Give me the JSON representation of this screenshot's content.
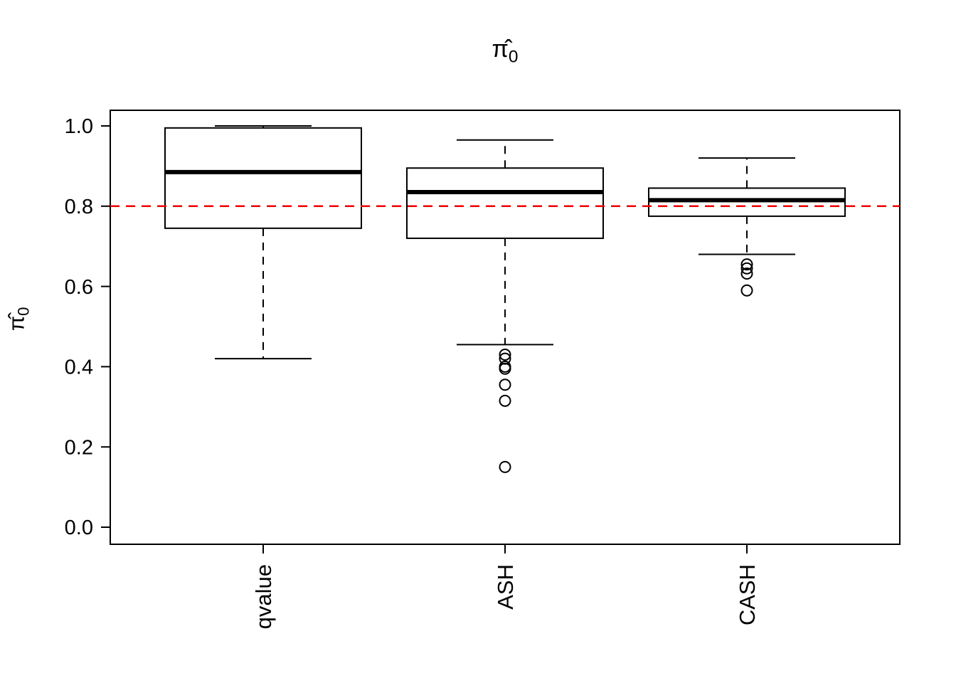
{
  "chart_data": {
    "type": "boxplot",
    "title": "π̂0",
    "title_base": "π̂",
    "title_sub": "0",
    "ylabel": "π̂0",
    "ylabel_base": "π̂",
    "ylabel_sub": "0",
    "categories": [
      "qvalue",
      "ASH",
      "CASH"
    ],
    "yticks": [
      0.0,
      0.2,
      0.4,
      0.6,
      0.8,
      1.0
    ],
    "ylim": [
      -0.04,
      1.04
    ],
    "grid": false,
    "legend": "none",
    "reference_line": {
      "value": 0.8,
      "color": "#ee0000",
      "style": "dashed"
    },
    "series": [
      {
        "name": "qvalue",
        "whisker_low": 0.42,
        "q1": 0.745,
        "median": 0.885,
        "q3": 0.995,
        "whisker_high": 1.0,
        "outliers": []
      },
      {
        "name": "ASH",
        "whisker_low": 0.455,
        "q1": 0.72,
        "median": 0.835,
        "q3": 0.895,
        "whisker_high": 0.965,
        "outliers": [
          0.43,
          0.42,
          0.4,
          0.395,
          0.355,
          0.315,
          0.15
        ]
      },
      {
        "name": "CASH",
        "whisker_low": 0.68,
        "q1": 0.775,
        "median": 0.815,
        "q3": 0.845,
        "whisker_high": 0.92,
        "outliers": [
          0.655,
          0.645,
          0.632,
          0.59
        ]
      }
    ]
  }
}
